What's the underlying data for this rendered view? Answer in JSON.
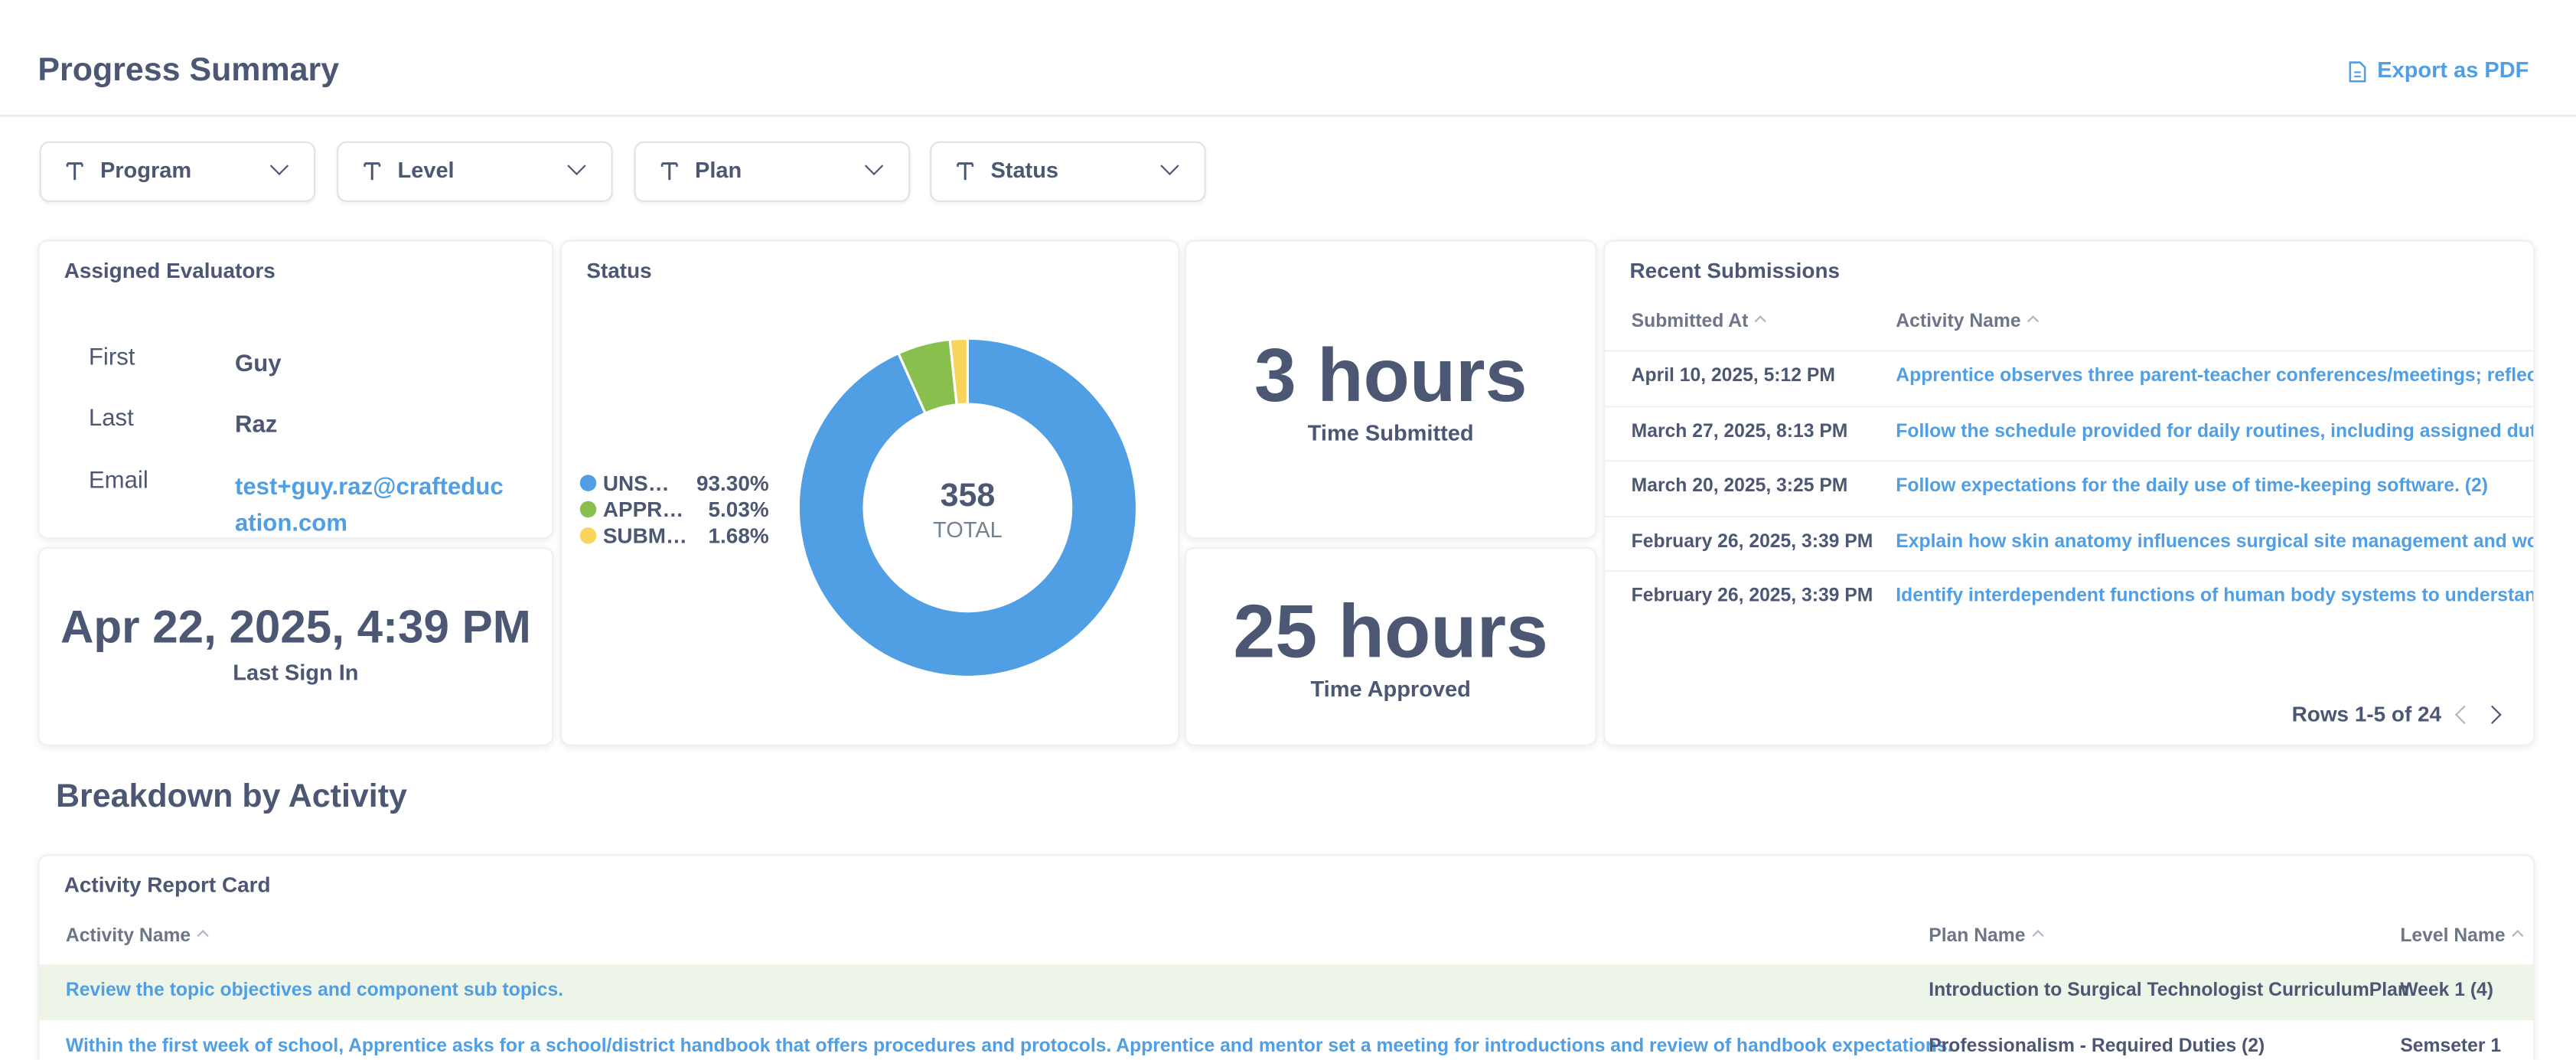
{
  "header": {
    "title": "Progress Summary",
    "export": "Export as PDF"
  },
  "filters": [
    "Program",
    "Level",
    "Plan",
    "Status"
  ],
  "evaluators": {
    "title": "Assigned Evaluators",
    "rows": [
      [
        "First",
        "Guy"
      ],
      [
        "Last",
        "Raz"
      ],
      [
        "Email",
        "test+guy.raz@crafteducation.com"
      ]
    ]
  },
  "last_sign_in": {
    "value": "Apr 22, 2025, 4:39 PM",
    "label": "Last Sign In"
  },
  "status_chart": {
    "type": "pie",
    "title": "Status",
    "categories": [
      "UNS…",
      "APPR…",
      "SUBM…"
    ],
    "values": [
      93.3,
      5.03,
      1.68
    ],
    "value_labels": [
      "93.30%",
      "5.03%",
      "1.68%"
    ],
    "colors": [
      "#509ee3",
      "#88bf4d",
      "#f9d45c"
    ],
    "total": 358,
    "total_label": "TOTAL"
  },
  "time_submitted": {
    "value": "3 hours",
    "label": "Time Submitted"
  },
  "time_approved": {
    "value": "25 hours",
    "label": "Time Approved"
  },
  "recent": {
    "title": "Recent Submissions",
    "columns": [
      "Submitted At",
      "Activity Name"
    ],
    "rows": [
      [
        "April 10, 2025, 5:12 PM",
        "Apprentice observes three parent-teacher conferences/meetings; reflects with"
      ],
      [
        "March 27, 2025, 8:13 PM",
        "Follow the schedule provided for daily routines, including assigned duties and r"
      ],
      [
        "March 20, 2025, 3:25 PM",
        "Follow expectations for the daily use of time-keeping software. (2)"
      ],
      [
        "February 26, 2025, 3:39 PM",
        "Explain how skin anatomy influences surgical site management and wound hea"
      ],
      [
        "February 26, 2025, 3:39 PM",
        "Identify interdependent functions of human body systems to understand surgi"
      ]
    ],
    "pagination": "Rows 1-5 of 24"
  },
  "breakdown": {
    "title": "Breakdown by Activity",
    "card_title": "Activity Report Card",
    "columns": [
      "Activity Name",
      "Plan Name",
      "Level Name"
    ],
    "rows": [
      [
        "Review the topic objectives and component sub topics.",
        "Introduction to Surgical Technologist CurriculumPlan",
        "Week 1 (4)"
      ],
      [
        "Within the first week of school, Apprentice asks for a school/district handbook that offers procedures and protocols. Apprentice and mentor set a meeting for introductions and review of handbook expectations.",
        "Professionalism - Required Duties (2)",
        "Semseter 1"
      ]
    ]
  }
}
